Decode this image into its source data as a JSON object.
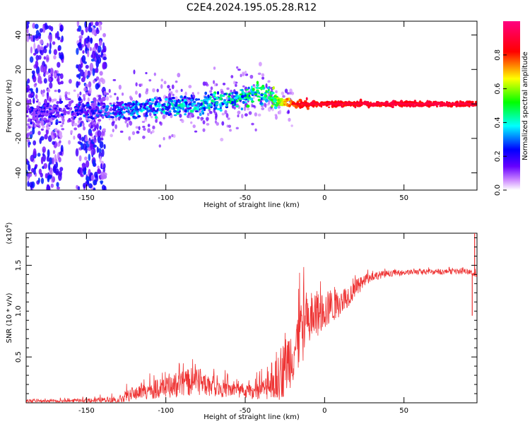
{
  "title": "C2E4.2024.195.05.28.R12",
  "chart_data": [
    {
      "type": "heatmap",
      "name": "spectrogram",
      "xlabel": "Height of straight line (km)",
      "ylabel": "Frequency (Hz)",
      "xlim": [
        -188,
        96
      ],
      "ylim": [
        -50,
        48
      ],
      "xticks": [
        -150,
        -100,
        -50,
        0,
        50
      ],
      "yticks": [
        -40,
        -20,
        0,
        20,
        40
      ],
      "xtick_labels": [
        "-150",
        "-100",
        "-50",
        "0",
        "50"
      ],
      "ytick_labels": [
        "-40",
        "-20",
        "0",
        "20",
        "40"
      ],
      "colorbar": {
        "label": "Normalized spectral amplitude",
        "range": [
          0,
          1
        ],
        "ticks": [
          0.0,
          0.2,
          0.4,
          0.6,
          0.8
        ],
        "tick_labels": [
          "0.0",
          "0.2",
          "0.4",
          "0.6",
          "0.8"
        ],
        "colors": [
          "#ffffff",
          "#cc88ff",
          "#6600ff",
          "#0000ff",
          "#00ffff",
          "#00ff00",
          "#ffff00",
          "#ff0000",
          "#ff0080"
        ]
      },
      "ridge": {
        "description": "frequency center line of the return signal",
        "x": [
          -180,
          -150,
          -120,
          -100,
          -80,
          -60,
          -40,
          -30,
          -20,
          -10,
          0,
          50,
          95
        ],
        "y": [
          -5,
          -4,
          -3,
          -2,
          0,
          3,
          6,
          2,
          0,
          0,
          0,
          0,
          0
        ],
        "amplitude": [
          0.25,
          0.3,
          0.4,
          0.45,
          0.45,
          0.5,
          0.55,
          0.65,
          0.85,
          0.9,
          0.9,
          0.92,
          0.92
        ]
      },
      "noise_bands_x": [
        [
          -188,
          -165
        ],
        [
          -156,
          -138
        ]
      ]
    },
    {
      "type": "line",
      "name": "snr",
      "xlabel": "Height of straight line (km)",
      "ylabel": "SNR (10 * v/v)",
      "scale_note": "(x10",
      "scale_exponent": "4",
      "scale_suffix": ")",
      "xlim": [
        -188,
        96
      ],
      "ylim": [
        0,
        1.85
      ],
      "xticks": [
        -150,
        -100,
        -50,
        0,
        50
      ],
      "yticks": [
        0.5,
        1.0,
        1.5
      ],
      "xtick_labels": [
        "-150",
        "-100",
        "-50",
        "0",
        "50"
      ],
      "ytick_labels": [
        "0.5",
        "1.0",
        "1.5"
      ],
      "color": "#ee3333",
      "series_envelope": {
        "x": [
          -188,
          -150,
          -130,
          -120,
          -110,
          -100,
          -90,
          -82,
          -75,
          -65,
          -55,
          -45,
          -38,
          -32,
          -28,
          -25,
          -20,
          -15,
          -10,
          -5,
          0,
          5,
          10,
          15,
          20,
          25,
          30,
          40,
          50,
          60,
          70,
          80,
          90,
          96
        ],
        "mean": [
          0.02,
          0.02,
          0.04,
          0.1,
          0.14,
          0.16,
          0.2,
          0.24,
          0.2,
          0.16,
          0.13,
          0.12,
          0.15,
          0.22,
          0.3,
          0.4,
          0.55,
          0.72,
          0.88,
          0.95,
          1.0,
          1.05,
          1.1,
          1.17,
          1.25,
          1.32,
          1.38,
          1.41,
          1.42,
          1.43,
          1.43,
          1.43,
          1.43,
          1.4
        ],
        "noise": [
          0.015,
          0.02,
          0.04,
          0.08,
          0.1,
          0.11,
          0.14,
          0.16,
          0.12,
          0.1,
          0.08,
          0.08,
          0.12,
          0.2,
          0.28,
          0.32,
          0.35,
          0.35,
          0.3,
          0.25,
          0.22,
          0.18,
          0.15,
          0.12,
          0.1,
          0.07,
          0.05,
          0.035,
          0.03,
          0.03,
          0.03,
          0.03,
          0.03,
          0.03
        ]
      },
      "notable_points": [
        {
          "x": 93,
          "y": 0.95
        },
        {
          "x": 94.5,
          "y": 1.85
        }
      ]
    }
  ]
}
